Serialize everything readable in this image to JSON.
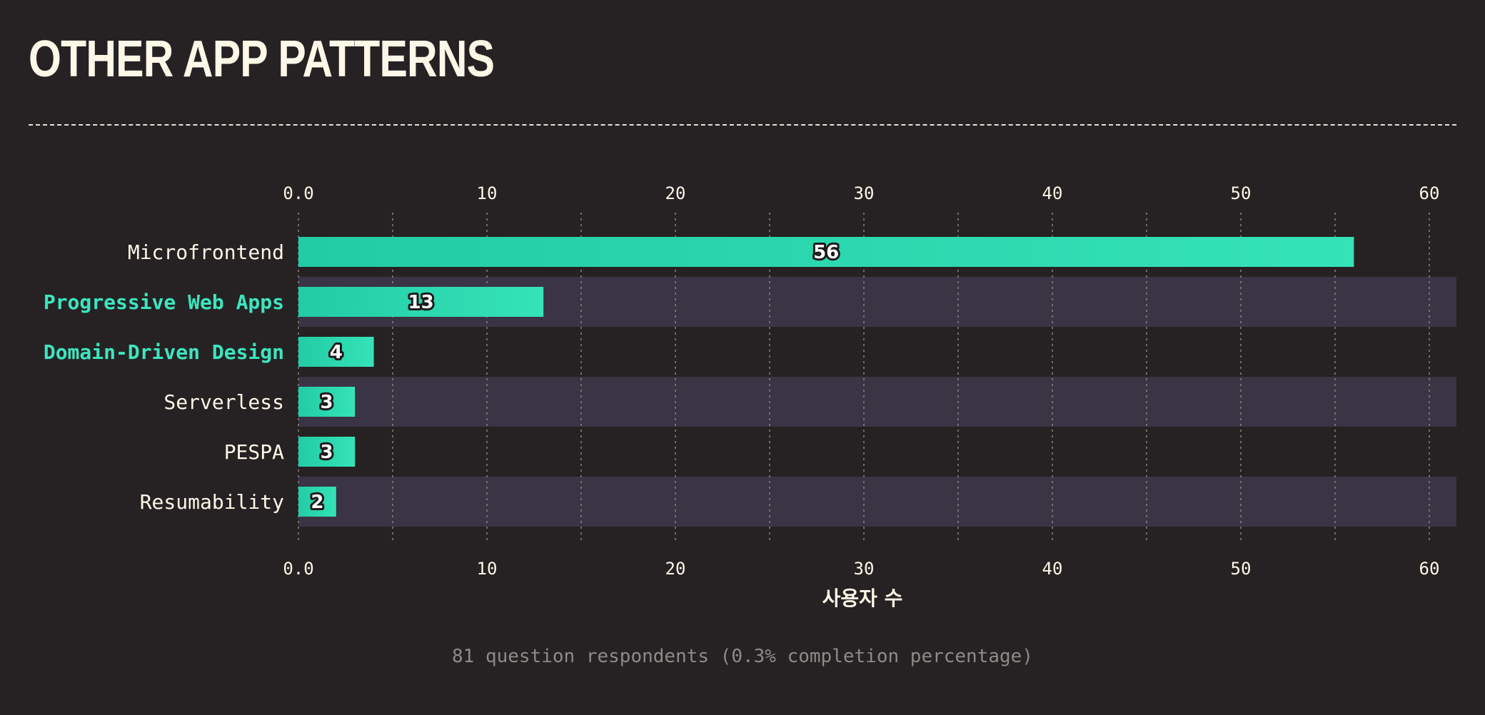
{
  "title": "OTHER APP PATTERNS",
  "footer_note": "81 question respondents (0.3% completion percentage)",
  "chart_data": {
    "type": "bar",
    "orientation": "horizontal",
    "categories": [
      "Microfrontend",
      "Progressive Web Apps",
      "Domain-Driven Design",
      "Serverless",
      "PESPA",
      "Resumability"
    ],
    "values": [
      56,
      13,
      4,
      3,
      3,
      2
    ],
    "data_labels": [
      "56",
      "13",
      "4",
      "3",
      "3",
      "2"
    ],
    "highlighted_categories": [
      "Progressive Web Apps",
      "Domain-Driven Design"
    ],
    "xlabel": "사용자 수",
    "ylabel": "",
    "xlim": [
      0,
      62
    ],
    "x_ticks": [
      0,
      10,
      20,
      30,
      40,
      50,
      60
    ],
    "x_tick_labels": [
      "0.0",
      "10",
      "20",
      "30",
      "40",
      "50",
      "60"
    ],
    "minor_gridlines": [
      5,
      15,
      25,
      35,
      45,
      55
    ],
    "grid": true,
    "axis_position": "top and bottom",
    "colors": {
      "background": "#262223",
      "band": "#3a3444",
      "bar_start": "#22cca5",
      "bar_end": "#35e3b8",
      "highlight_label": "#3be6c0",
      "label": "#fff7e8",
      "grid": "#8a8580"
    }
  }
}
